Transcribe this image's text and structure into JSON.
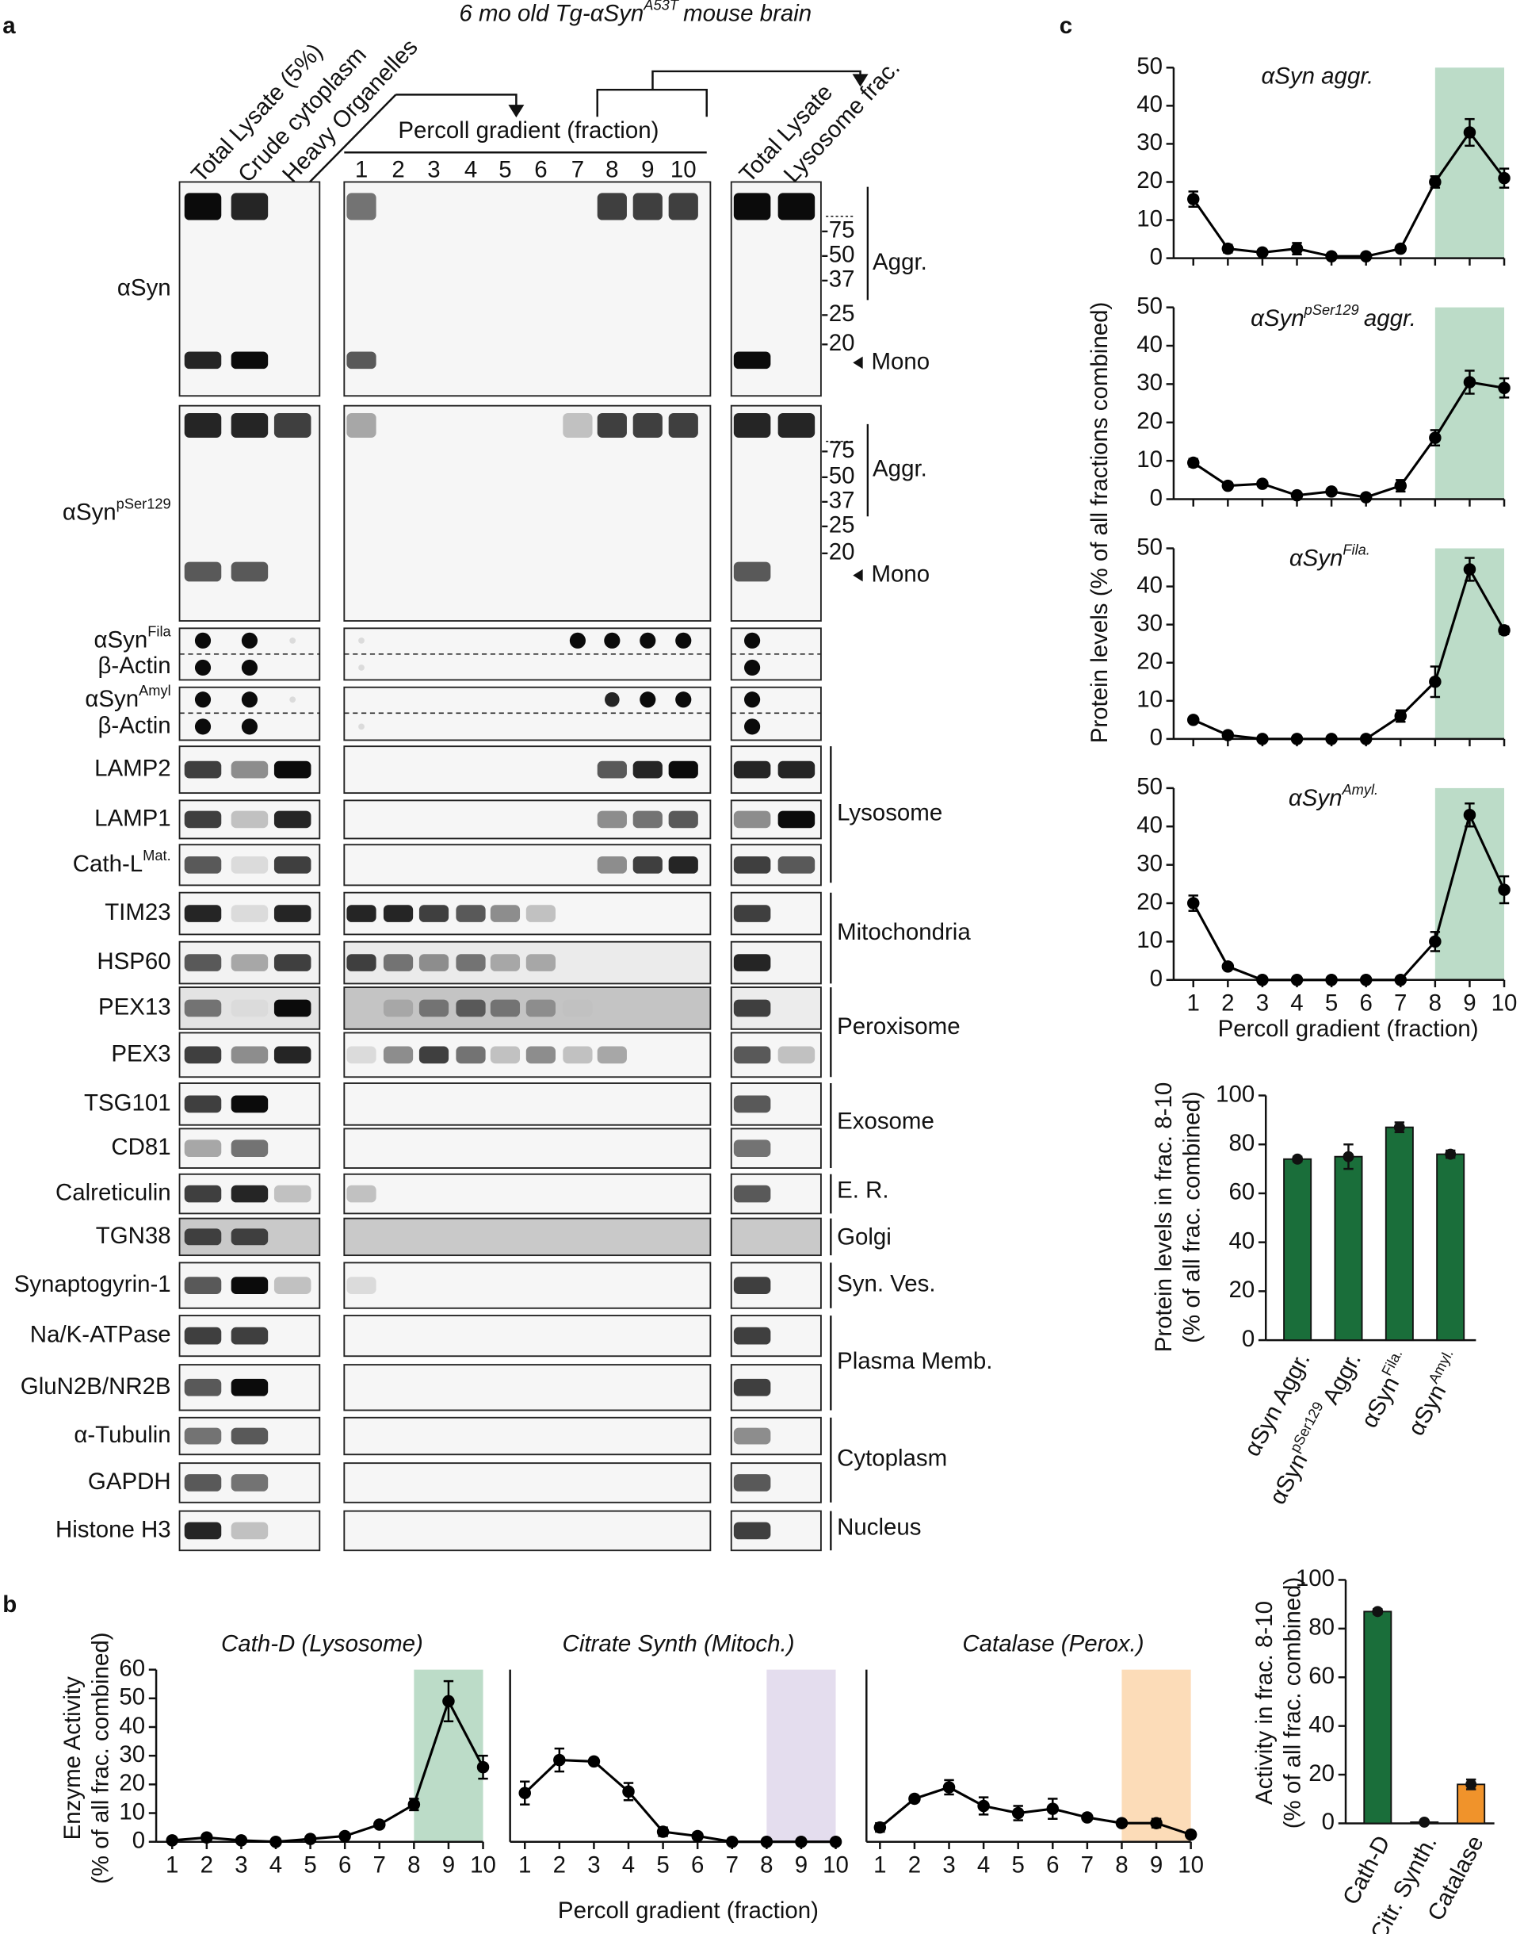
{
  "panel_a": {
    "label": "a",
    "header": {
      "text": "6 mo old Tg-αSyn",
      "sup": "A53T",
      "rest": "mouse brain"
    },
    "lanes_left": [
      "Total Lysate (5%)",
      "Crude cytoplasm",
      "Heavy Organelles"
    ],
    "gradient_label": "Percoll gradient (fraction)",
    "fractions": [
      "1",
      "2",
      "3",
      "4",
      "5",
      "6",
      "7",
      "8",
      "9",
      "10"
    ],
    "lanes_right": [
      "Total Lysate",
      "Lysosome frac."
    ],
    "rows": [
      {
        "label": "αSyn"
      },
      {
        "label": "αSyn",
        "sup": "pSer129"
      },
      {
        "label": "αSyn",
        "sup": "Fila"
      },
      {
        "label": "β-Actin"
      },
      {
        "label": "αSyn",
        "sup": "Amyl"
      },
      {
        "label": "β-Actin"
      },
      {
        "label": "LAMP2"
      },
      {
        "label": "LAMP1"
      },
      {
        "label": "Cath-L",
        "sup": "Mat."
      },
      {
        "label": "TIM23"
      },
      {
        "label": "HSP60"
      },
      {
        "label": "PEX13"
      },
      {
        "label": "PEX3"
      },
      {
        "label": "TSG101"
      },
      {
        "label": "CD81"
      },
      {
        "label": "Calreticulin"
      },
      {
        "label": "TGN38"
      },
      {
        "label": "Synaptogyrin-1"
      },
      {
        "label": "Na/K-ATPase"
      },
      {
        "label": "GluN2B/NR2B"
      },
      {
        "label": "α-Tubulin"
      },
      {
        "label": "GAPDH"
      },
      {
        "label": "Histone H3"
      }
    ],
    "markers": [
      "-75",
      "-50",
      "-37",
      "-25",
      "-20"
    ],
    "aggr": "Aggr.",
    "mono": "Mono",
    "groups": [
      "Lysosome",
      "Mitochondria",
      "Peroxisome",
      "Exosome",
      "E. R.",
      "Golgi",
      "Syn. Ves.",
      "Plasma Memb.",
      "Cytoplasm",
      "Nucleus"
    ]
  },
  "panel_b": {
    "label": "b"
  },
  "panel_c": {
    "label": "c"
  },
  "chart_data": [
    {
      "type": "line",
      "title": "αSyn aggr.",
      "x": [
        1,
        2,
        3,
        4,
        5,
        6,
        7,
        8,
        9,
        10
      ],
      "values": [
        15.5,
        2.5,
        1.5,
        2.5,
        0.5,
        0.5,
        2.5,
        20,
        33,
        21
      ],
      "errors": [
        2,
        1,
        0.5,
        1.5,
        0.5,
        0.5,
        0.5,
        1.5,
        3.5,
        2.5
      ],
      "color": "#000000",
      "xlim": [
        1,
        10
      ],
      "ylim": [
        0,
        50
      ],
      "yticks": [
        0,
        10,
        20,
        30,
        40,
        50
      ],
      "highlight": [
        8,
        10
      ],
      "highlight_color": "#bcdcc8",
      "ylabel": "Protein levels (% of all fractions combined)"
    },
    {
      "type": "line",
      "title": "αSyn",
      "title_sup": "pSer129",
      "title_rest": "aggr.",
      "x": [
        1,
        2,
        3,
        4,
        5,
        6,
        7,
        8,
        9,
        10
      ],
      "values": [
        9.5,
        3.5,
        4,
        1,
        2,
        0.5,
        3.5,
        16,
        30.5,
        29
      ],
      "errors": [
        1,
        0.5,
        0.5,
        0.5,
        0.5,
        0.5,
        1.5,
        2,
        3,
        2.5
      ],
      "color": "#000000",
      "xlim": [
        1,
        10
      ],
      "ylim": [
        0,
        50
      ],
      "yticks": [
        0,
        10,
        20,
        30,
        40,
        50
      ],
      "highlight": [
        8,
        10
      ],
      "highlight_color": "#bcdcc8"
    },
    {
      "type": "line",
      "title": "αSyn",
      "title_sup": "Fila.",
      "x": [
        1,
        2,
        3,
        4,
        5,
        6,
        7,
        8,
        9,
        10
      ],
      "values": [
        5,
        1,
        0,
        0,
        0,
        0,
        6,
        15,
        44.5,
        28.5
      ],
      "errors": [
        0.5,
        0.5,
        0,
        0,
        0,
        0,
        1.5,
        4,
        3,
        1
      ],
      "color": "#000000",
      "xlim": [
        1,
        10
      ],
      "ylim": [
        0,
        50
      ],
      "yticks": [
        0,
        10,
        20,
        30,
        40,
        50
      ],
      "highlight": [
        8,
        10
      ],
      "highlight_color": "#bcdcc8"
    },
    {
      "type": "line",
      "title": "αSyn",
      "title_sup": "Amyl.",
      "x": [
        1,
        2,
        3,
        4,
        5,
        6,
        7,
        8,
        9,
        10
      ],
      "values": [
        20,
        3.5,
        0,
        0,
        0,
        0,
        0,
        10,
        43,
        23.5
      ],
      "errors": [
        2,
        0.5,
        0,
        0,
        0,
        0,
        0,
        2.5,
        3,
        3.5
      ],
      "color": "#000000",
      "xlim": [
        1,
        10
      ],
      "ylim": [
        0,
        50
      ],
      "yticks": [
        0,
        10,
        20,
        30,
        40,
        50
      ],
      "xticks": [
        1,
        2,
        3,
        4,
        5,
        6,
        7,
        8,
        9,
        10
      ],
      "xlabel": "Percoll gradient (fraction)",
      "highlight": [
        8,
        10
      ],
      "highlight_color": "#bcdcc8"
    },
    {
      "type": "bar",
      "categories": [
        "αSyn Aggr.",
        "αSyn",
        "αSyn",
        "αSyn"
      ],
      "category_sups": [
        null,
        "pSer129",
        "Fila.",
        "Amyl."
      ],
      "category_rests": [
        null,
        "Aggr.",
        null,
        null
      ],
      "values": [
        74,
        75,
        87,
        76
      ],
      "errors": [
        1,
        5,
        2,
        1.5
      ],
      "colors": [
        "#1a6e3a",
        "#1a6e3a",
        "#1a6e3a",
        "#1a6e3a"
      ],
      "ylim": [
        0,
        100
      ],
      "yticks": [
        0,
        20,
        40,
        60,
        80,
        100
      ],
      "ylabel": [
        "Protein levels in frac. 8-10",
        "(% of all frac. combined)"
      ]
    },
    {
      "type": "line",
      "title": "Cath-D (Lysosome)",
      "x": [
        1,
        2,
        3,
        4,
        5,
        6,
        7,
        8,
        9,
        10
      ],
      "values": [
        0.5,
        1.5,
        0.5,
        0,
        1,
        2,
        6,
        13,
        49,
        26
      ],
      "errors": [
        0.3,
        0.5,
        0.3,
        0,
        0.5,
        0.5,
        0.5,
        2,
        7,
        4
      ],
      "color": "#000000",
      "xlim": [
        1,
        10
      ],
      "ylim": [
        0,
        60
      ],
      "yticks": [
        0,
        10,
        20,
        30,
        40,
        50,
        60
      ],
      "xticks": [
        1,
        2,
        3,
        4,
        5,
        6,
        7,
        8,
        9,
        10
      ],
      "highlight": [
        8,
        10
      ],
      "highlight_color": "#bcdcc8",
      "ylabel": [
        "Enzyme Activity",
        "(% of all frac. combined)"
      ]
    },
    {
      "type": "line",
      "title": "Citrate Synth (Mitoch.)",
      "x": [
        1,
        2,
        3,
        4,
        5,
        6,
        7,
        8,
        9,
        10
      ],
      "values": [
        17,
        28.5,
        28,
        17.5,
        3.5,
        2,
        0,
        0,
        0,
        0
      ],
      "errors": [
        4,
        4,
        1,
        3,
        1.5,
        1,
        0,
        0,
        0,
        0
      ],
      "color": "#000000",
      "xlim": [
        1,
        10
      ],
      "ylim": [
        0,
        60
      ],
      "xticks": [
        1,
        2,
        3,
        4,
        5,
        6,
        7,
        8,
        9,
        10
      ],
      "highlight": [
        8,
        10
      ],
      "highlight_color": "#e4ddee",
      "xlabel": "Percoll gradient (fraction)"
    },
    {
      "type": "line",
      "title": "Catalase (Perox.)",
      "x": [
        1,
        2,
        3,
        4,
        5,
        6,
        7,
        8,
        9,
        10
      ],
      "values": [
        5,
        15,
        19,
        12.5,
        10,
        11.5,
        8.5,
        6.5,
        6.5,
        2.5
      ],
      "errors": [
        1.5,
        1,
        2.5,
        3,
        2.5,
        3.5,
        0.5,
        1,
        1.5,
        0.5
      ],
      "color": "#000000",
      "xlim": [
        1,
        10
      ],
      "ylim": [
        0,
        60
      ],
      "xticks": [
        1,
        2,
        3,
        4,
        5,
        6,
        7,
        8,
        9,
        10
      ],
      "highlight": [
        8,
        10
      ],
      "highlight_color": "#fcdcb8"
    },
    {
      "type": "bar",
      "categories": [
        "Cath-D",
        "Citr. Synth.",
        "Catalase"
      ],
      "values": [
        87,
        0.5,
        16
      ],
      "errors": [
        1,
        0.3,
        2
      ],
      "colors": [
        "#1a6e3a",
        "#1a6e3a",
        "#f0932b"
      ],
      "ylim": [
        0,
        100
      ],
      "yticks": [
        0,
        20,
        40,
        60,
        80,
        100
      ],
      "ylabel": [
        "Activity in frac. 8-10",
        "(% of all frac. combined)"
      ]
    }
  ]
}
